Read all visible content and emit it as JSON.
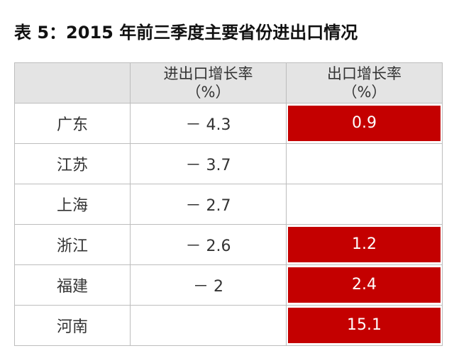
{
  "title": "表 5：2015 年前三季度主要省份进出口情况",
  "table": {
    "header": [
      null,
      [
        "进出口增长率",
        "（%）"
      ],
      [
        "出口增长率",
        "（%）"
      ]
    ],
    "rows": [
      [
        "广东",
        "－ 4.3",
        "0.9"
      ],
      [
        "江苏",
        "－ 3.7",
        null
      ],
      [
        "上海",
        "－ 2.7",
        null
      ],
      [
        "浙江",
        "－ 2.6",
        "1.2"
      ],
      [
        "福建",
        "－ 2",
        "2.4"
      ],
      [
        "河南",
        null,
        "15.1"
      ]
    ]
  }
}
